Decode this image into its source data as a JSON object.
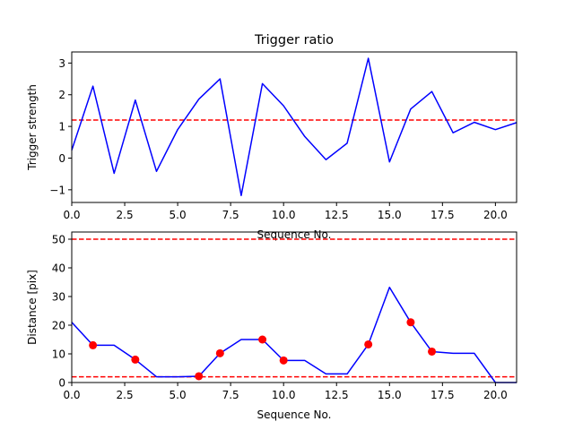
{
  "chart_data": [
    {
      "type": "line",
      "title": "Trigger ratio",
      "xlabel": "Sequence No.",
      "ylabel": "Trigger strength",
      "xlim": [
        0,
        21
      ],
      "ylim": [
        -1.4,
        3.35
      ],
      "xticks": [
        "0.0",
        "2.5",
        "5.0",
        "7.5",
        "10.0",
        "12.5",
        "15.0",
        "17.5",
        "20.0"
      ],
      "yticks": [
        "−1",
        "0",
        "1",
        "2",
        "3"
      ],
      "grid": false,
      "line_color": "#0000ff",
      "x": [
        0,
        1,
        2,
        3,
        4,
        5,
        6,
        7,
        8,
        9,
        10,
        11,
        12,
        13,
        14,
        15,
        16,
        17,
        18,
        19,
        20,
        21
      ],
      "y": [
        0.25,
        2.27,
        -0.48,
        1.83,
        -0.42,
        0.9,
        1.86,
        2.5,
        -1.18,
        2.35,
        1.65,
        0.68,
        -0.05,
        0.47,
        3.15,
        -0.12,
        1.55,
        2.1,
        0.8,
        1.13,
        0.9,
        1.12
      ],
      "hlines": [
        {
          "y": 1.2,
          "color": "#ff0000",
          "style": "dashed"
        }
      ]
    },
    {
      "type": "line",
      "title": "",
      "xlabel": "Sequence No.",
      "ylabel": "Distance [pix]",
      "xlim": [
        0,
        21
      ],
      "ylim": [
        0,
        52.5
      ],
      "xticks": [
        "0.0",
        "2.5",
        "5.0",
        "7.5",
        "10.0",
        "12.5",
        "15.0",
        "17.5",
        "20.0"
      ],
      "yticks": [
        "0",
        "10",
        "20",
        "30",
        "40",
        "50"
      ],
      "grid": false,
      "line_color": "#0000ff",
      "x": [
        0,
        1,
        2,
        3,
        4,
        5,
        6,
        7,
        8,
        9,
        10,
        11,
        12,
        13,
        14,
        15,
        16,
        17,
        18,
        19,
        20,
        21
      ],
      "y": [
        21,
        13,
        13,
        8,
        2,
        2,
        2.2,
        10.2,
        15,
        15,
        7.7,
        7.7,
        3,
        3,
        13.3,
        33.2,
        21,
        10.8,
        10.2,
        10.2,
        0,
        0
      ],
      "markers": {
        "color": "#ff0000",
        "x": [
          1,
          3,
          6,
          7,
          9,
          10,
          14,
          16,
          17
        ],
        "y": [
          13,
          8,
          2.2,
          10.2,
          15,
          7.7,
          13.3,
          21,
          10.8
        ]
      },
      "hlines": [
        {
          "y": 50,
          "color": "#ff0000",
          "style": "dashed"
        },
        {
          "y": 2,
          "color": "#ff0000",
          "style": "dashed"
        }
      ]
    }
  ]
}
